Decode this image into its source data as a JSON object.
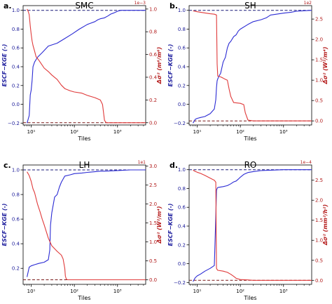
{
  "chart_data": [
    {
      "type": "line",
      "panel": "a.",
      "title": "SMC",
      "xlabel": "Tiles",
      "ylabel_left": "ESCF−KGE (-)",
      "ylabel_right": "Δσ² (m⁶/m⁶)",
      "right_scale_note": "1e−3",
      "xscale": "log",
      "xlim": [
        6.5,
        4500
      ],
      "x_ticks": [
        {
          "v": 10,
          "label": "10¹"
        },
        {
          "v": 100,
          "label": "10²"
        },
        {
          "v": 1000,
          "label": "10³"
        }
      ],
      "ylim_left": [
        -0.22,
        1.05
      ],
      "ylim_right": [
        -0.02,
        1.03
      ],
      "yticks_left": [
        {
          "v": -0.2,
          "label": "−0.2"
        },
        {
          "v": 0,
          "label": "0.0"
        },
        {
          "v": 0.2,
          "label": "0.2"
        },
        {
          "v": 0.4,
          "label": "0.4"
        },
        {
          "v": 0.6,
          "label": "0.6"
        },
        {
          "v": 0.8,
          "label": "0.8"
        },
        {
          "v": 1.0,
          "label": "1.0"
        }
      ],
      "yticks_right": [
        {
          "v": 0,
          "label": "0.0"
        },
        {
          "v": 0.2,
          "label": "0.2"
        },
        {
          "v": 0.4,
          "label": "0.4"
        },
        {
          "v": 0.6,
          "label": "0.6"
        },
        {
          "v": 0.8,
          "label": "0.8"
        },
        {
          "v": 1.0,
          "label": "1.0"
        }
      ],
      "ref_left_top": 1.0,
      "ref_left_bottom": -0.2,
      "series": [
        {
          "axis": "left",
          "color": "#2b2bd4",
          "x": [
            8,
            9,
            9.5,
            10,
            10.5,
            11,
            12,
            14,
            18,
            25,
            40,
            60,
            90,
            130,
            200,
            300,
            350,
            400,
            500,
            600,
            700,
            800,
            900,
            1000,
            1200,
            4500
          ],
          "y": [
            -0.2,
            -0.12,
            0.1,
            0.15,
            0.25,
            0.4,
            0.45,
            0.5,
            0.55,
            0.62,
            0.65,
            0.7,
            0.75,
            0.8,
            0.85,
            0.88,
            0.9,
            0.91,
            0.92,
            0.94,
            0.96,
            0.97,
            0.98,
            0.99,
            1.0,
            1.0
          ]
        },
        {
          "axis": "right",
          "color": "#e03a3a",
          "x": [
            8,
            8.5,
            9,
            9.5,
            10,
            10.5,
            11,
            12,
            13,
            15,
            17,
            20,
            25,
            30,
            40,
            50,
            60,
            80,
            100,
            150,
            200,
            300,
            400,
            450,
            500,
            550,
            600,
            4500
          ],
          "y": [
            1.0,
            0.98,
            0.95,
            0.85,
            0.78,
            0.72,
            0.68,
            0.63,
            0.58,
            0.55,
            0.52,
            0.48,
            0.45,
            0.42,
            0.38,
            0.33,
            0.3,
            0.28,
            0.27,
            0.26,
            0.24,
            0.22,
            0.2,
            0.16,
            0.02,
            0.0,
            0.0,
            0.0
          ]
        }
      ]
    },
    {
      "type": "line",
      "panel": "b.",
      "title": "SH",
      "xlabel": "Tiles",
      "ylabel_left": "ESCF−KGE (-)",
      "ylabel_right": "Δσ² (W²/m⁴)",
      "right_scale_note": "1e2",
      "xscale": "log",
      "xlim": [
        6.5,
        4500
      ],
      "x_ticks": [
        {
          "v": 10,
          "label": "10¹"
        },
        {
          "v": 100,
          "label": "10²"
        },
        {
          "v": 1000,
          "label": "10³"
        }
      ],
      "ylim_left": [
        -0.22,
        1.05
      ],
      "ylim_right": [
        -0.1,
        2.83
      ],
      "yticks_left": [
        {
          "v": -0.2,
          "label": "−0.2"
        },
        {
          "v": 0,
          "label": "0.0"
        },
        {
          "v": 0.2,
          "label": "0.2"
        },
        {
          "v": 0.4,
          "label": "0.4"
        },
        {
          "v": 0.6,
          "label": "0.6"
        },
        {
          "v": 0.8,
          "label": "0.8"
        },
        {
          "v": 1.0,
          "label": "1.0"
        }
      ],
      "yticks_right": [
        {
          "v": 0,
          "label": "0.0"
        },
        {
          "v": 0.5,
          "label": "0.5"
        },
        {
          "v": 1.0,
          "label": "1.0"
        },
        {
          "v": 1.5,
          "label": "1.5"
        },
        {
          "v": 2.0,
          "label": "2.0"
        },
        {
          "v": 2.5,
          "label": "2.5"
        }
      ],
      "ref_left_top": 1.0,
      "ref_left_bottom": -0.2,
      "series": [
        {
          "axis": "left",
          "color": "#2b2bd4",
          "x": [
            8,
            9,
            10,
            12,
            15,
            20,
            25,
            27,
            28,
            29,
            30,
            32,
            35,
            40,
            45,
            50,
            55,
            60,
            70,
            80,
            90,
            100,
            150,
            200,
            300,
            400,
            500,
            1000,
            1500,
            2000,
            4500
          ],
          "y": [
            -0.2,
            -0.16,
            -0.15,
            -0.14,
            -0.13,
            -0.1,
            -0.05,
            0.05,
            0.18,
            0.25,
            0.27,
            0.3,
            0.33,
            0.45,
            0.5,
            0.6,
            0.65,
            0.67,
            0.72,
            0.74,
            0.78,
            0.8,
            0.85,
            0.88,
            0.9,
            0.92,
            0.95,
            0.97,
            0.98,
            0.99,
            1.0
          ]
        },
        {
          "axis": "right",
          "color": "#e03a3a",
          "x": [
            8,
            10,
            15,
            20,
            25,
            28,
            29,
            30,
            35,
            40,
            45,
            50,
            55,
            60,
            70,
            100,
            120,
            130,
            150,
            200,
            300,
            1000,
            4500
          ],
          "y": [
            2.7,
            2.68,
            2.65,
            2.63,
            2.62,
            2.6,
            1.4,
            1.1,
            1.08,
            1.05,
            1.02,
            1.0,
            0.78,
            0.6,
            0.45,
            0.43,
            0.4,
            0.2,
            0.02,
            0.0,
            0.0,
            0.0,
            0.0
          ]
        }
      ]
    },
    {
      "type": "line",
      "panel": "c.",
      "title": "LH",
      "xlabel": "Tiles",
      "ylabel_left": "ESCF−KGE (-)",
      "ylabel_right": "Δσ² (W²/m⁴)",
      "right_scale_note": "1e1",
      "xscale": "log",
      "xlim": [
        6.5,
        4500
      ],
      "x_ticks": [
        {
          "v": 10,
          "label": "10¹"
        },
        {
          "v": 100,
          "label": "10²"
        },
        {
          "v": 1000,
          "label": "10³"
        }
      ],
      "ylim_left": [
        0.07,
        1.04
      ],
      "ylim_right": [
        -0.12,
        3.03
      ],
      "yticks_left": [
        {
          "v": 0.2,
          "label": "0.2"
        },
        {
          "v": 0.4,
          "label": "0.4"
        },
        {
          "v": 0.6,
          "label": "0.6"
        },
        {
          "v": 0.8,
          "label": "0.8"
        },
        {
          "v": 1.0,
          "label": "1.0"
        }
      ],
      "yticks_right": [
        {
          "v": 0,
          "label": "0.0"
        },
        {
          "v": 0.5,
          "label": "0.5"
        },
        {
          "v": 1.0,
          "label": "1.0"
        },
        {
          "v": 1.5,
          "label": "1.5"
        },
        {
          "v": 2.0,
          "label": "2.0"
        },
        {
          "v": 2.5,
          "label": "2.5"
        },
        {
          "v": 3.0,
          "label": "3.0"
        }
      ],
      "ref_left_top": 1.0,
      "ref_left_bottom": 0.1,
      "series": [
        {
          "axis": "left",
          "color": "#2b2bd4",
          "x": [
            8,
            9,
            10,
            12,
            15,
            20,
            25,
            27,
            28,
            29,
            30,
            35,
            40,
            45,
            50,
            60,
            80,
            100,
            150,
            200,
            300,
            400,
            500,
            1000,
            2000,
            4500
          ],
          "y": [
            0.13,
            0.21,
            0.22,
            0.23,
            0.24,
            0.25,
            0.27,
            0.35,
            0.55,
            0.6,
            0.65,
            0.78,
            0.8,
            0.86,
            0.9,
            0.95,
            0.96,
            0.97,
            0.975,
            0.98,
            0.985,
            0.99,
            0.99,
            0.995,
            1.0,
            1.0
          ]
        },
        {
          "axis": "right",
          "color": "#e03a3a",
          "x": [
            8,
            9,
            10,
            11,
            12,
            14,
            16,
            18,
            20,
            25,
            30,
            40,
            50,
            55,
            60,
            62,
            65,
            70,
            100,
            200,
            1000,
            4500
          ],
          "y": [
            2.85,
            2.75,
            2.6,
            2.4,
            2.3,
            2.0,
            1.8,
            1.6,
            1.45,
            1.1,
            0.9,
            0.75,
            0.65,
            0.55,
            0.3,
            0.1,
            0.02,
            0.0,
            0.0,
            0.0,
            0.0,
            0.0
          ]
        }
      ]
    },
    {
      "type": "line",
      "panel": "d.",
      "title": "RO",
      "xlabel": "Tiles",
      "ylabel_left": "ESCF−KGE (-)",
      "ylabel_right": "Δσ² (mm²/h²)",
      "right_scale_note": "1e−4",
      "xscale": "log",
      "xlim": [
        6.5,
        4500
      ],
      "x_ticks": [
        {
          "v": 10,
          "label": "10¹"
        },
        {
          "v": 100,
          "label": "10²"
        },
        {
          "v": 1000,
          "label": "10³"
        }
      ],
      "ylim_left": [
        -0.22,
        1.05
      ],
      "ylim_right": [
        -0.1,
        2.88
      ],
      "yticks_left": [
        {
          "v": -0.2,
          "label": "−0.2"
        },
        {
          "v": 0,
          "label": "0.0"
        },
        {
          "v": 0.2,
          "label": "0.2"
        },
        {
          "v": 0.4,
          "label": "0.4"
        },
        {
          "v": 0.6,
          "label": "0.6"
        },
        {
          "v": 0.8,
          "label": "0.8"
        },
        {
          "v": 1.0,
          "label": "1.0"
        }
      ],
      "yticks_right": [
        {
          "v": 0,
          "label": "0.0"
        },
        {
          "v": 0.5,
          "label": "0.5"
        },
        {
          "v": 1.0,
          "label": "1.0"
        },
        {
          "v": 1.5,
          "label": "1.5"
        },
        {
          "v": 2.0,
          "label": "2.0"
        },
        {
          "v": 2.5,
          "label": "2.5"
        }
      ],
      "ref_left_top": 1.0,
      "ref_left_bottom": -0.2,
      "series": [
        {
          "axis": "left",
          "color": "#2b2bd4",
          "x": [
            8,
            9,
            10,
            12,
            15,
            20,
            25,
            27,
            28,
            29,
            30,
            40,
            50,
            60,
            70,
            80,
            90,
            100,
            120,
            150,
            200,
            300,
            500,
            1000,
            2000,
            4500
          ],
          "y": [
            -0.19,
            -0.15,
            -0.13,
            -0.11,
            -0.08,
            -0.05,
            -0.02,
            0.5,
            0.78,
            0.8,
            0.81,
            0.82,
            0.83,
            0.85,
            0.87,
            0.88,
            0.9,
            0.92,
            0.95,
            0.97,
            0.98,
            0.99,
            0.995,
            1.0,
            1.0,
            1.0
          ]
        },
        {
          "axis": "right",
          "color": "#e03a3a",
          "x": [
            8,
            9,
            10,
            12,
            15,
            20,
            25,
            27,
            28,
            29,
            30,
            40,
            50,
            60,
            70,
            80,
            100,
            150,
            200,
            1000,
            4500
          ],
          "y": [
            2.75,
            2.72,
            2.7,
            2.67,
            2.62,
            2.55,
            2.5,
            2.45,
            0.3,
            0.27,
            0.25,
            0.23,
            0.2,
            0.15,
            0.1,
            0.05,
            0.02,
            0.01,
            0.0,
            0.0,
            0.0
          ]
        }
      ]
    }
  ]
}
